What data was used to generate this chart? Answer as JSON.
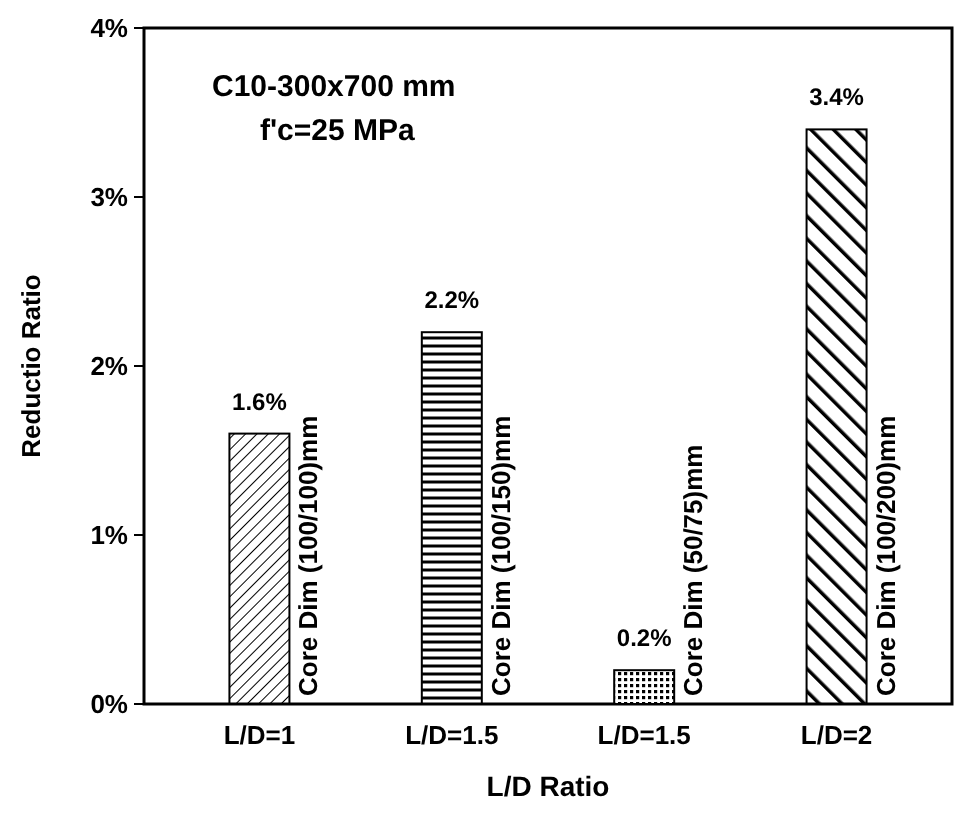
{
  "chart_data": {
    "type": "bar",
    "title": "C10-300x700 mm",
    "subtitle": "f'c=25 MPa",
    "xlabel": "L/D Ratio",
    "ylabel": "Reductio Ratio",
    "categories": [
      "L/D=1",
      "L/D=1.5",
      "L/D=1.5",
      "L/D=2"
    ],
    "values": [
      1.6,
      2.2,
      0.2,
      3.4
    ],
    "value_labels": [
      "1.6%",
      "2.2%",
      "0.2%",
      "3.4%"
    ],
    "color": "#000000",
    "ylim": [
      0,
      4
    ],
    "yticks": [
      {
        "value": 0,
        "label": "0%"
      },
      {
        "value": 1,
        "label": "1%"
      },
      {
        "value": 2,
        "label": "2%"
      },
      {
        "value": 3,
        "label": "3%"
      },
      {
        "value": 4,
        "label": "4%"
      }
    ],
    "annotations": [
      "Core Dim (100/100)mm",
      "Core Dim (100/150)mm",
      "Core Dim (50/75)mm",
      "Core Dim (100/200)mm"
    ],
    "grid": false
  }
}
